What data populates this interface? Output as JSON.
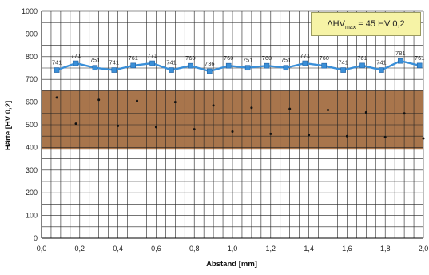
{
  "chart_data": {
    "type": "line",
    "xlabel": "Abstand [mm]",
    "ylabel": "Härte [HV 0,2]",
    "xlim": [
      0,
      2.0
    ],
    "ylim": [
      0,
      1000
    ],
    "x_ticks": [
      "0,0",
      "0,2",
      "0,4",
      "0,6",
      "0,8",
      "1,0",
      "1,2",
      "1,4",
      "1,6",
      "1,8",
      "2,0"
    ],
    "y_ticks": [
      "0",
      "100",
      "200",
      "300",
      "400",
      "500",
      "600",
      "700",
      "800",
      "900",
      "1000"
    ],
    "grid": true,
    "series": [
      {
        "x": [
          0.08,
          0.18,
          0.28,
          0.38,
          0.48,
          0.58,
          0.68,
          0.78,
          0.88,
          0.98,
          1.08,
          1.18,
          1.28,
          1.38,
          1.48,
          1.58,
          1.68,
          1.78,
          1.88,
          1.98
        ],
        "values": [
          741,
          771,
          751,
          741,
          761,
          771,
          741,
          760,
          736,
          760,
          751,
          760,
          751,
          771,
          760,
          741,
          761,
          741,
          781,
          761
        ],
        "labels": [
          "741",
          "771",
          "751",
          "741",
          "761",
          "771",
          "741",
          "760",
          "736",
          "760",
          "751",
          "760",
          "751",
          "771",
          "760",
          "741",
          "761",
          "741",
          "781",
          "761"
        ],
        "color": "#3a8fd8"
      }
    ],
    "background_band": {
      "y_range": [
        390,
        650
      ],
      "color": "#a8754c"
    },
    "indent_points": [
      {
        "x": 0.08,
        "y": 620
      },
      {
        "x": 0.18,
        "y": 505
      },
      {
        "x": 0.3,
        "y": 610
      },
      {
        "x": 0.4,
        "y": 495
      },
      {
        "x": 0.5,
        "y": 605
      },
      {
        "x": 0.6,
        "y": 490
      },
      {
        "x": 0.7,
        "y": 600
      },
      {
        "x": 0.8,
        "y": 480
      },
      {
        "x": 0.9,
        "y": 585
      },
      {
        "x": 1.0,
        "y": 470
      },
      {
        "x": 1.1,
        "y": 575
      },
      {
        "x": 1.2,
        "y": 460
      },
      {
        "x": 1.3,
        "y": 570
      },
      {
        "x": 1.4,
        "y": 455
      },
      {
        "x": 1.5,
        "y": 565
      },
      {
        "x": 1.6,
        "y": 450
      },
      {
        "x": 1.7,
        "y": 555
      },
      {
        "x": 1.8,
        "y": 445
      },
      {
        "x": 1.9,
        "y": 550
      },
      {
        "x": 2.0,
        "y": 440
      }
    ],
    "annotation": {
      "prefix": "ΔHV",
      "subscript": "max",
      "text": " = 45 HV 0,2"
    }
  }
}
